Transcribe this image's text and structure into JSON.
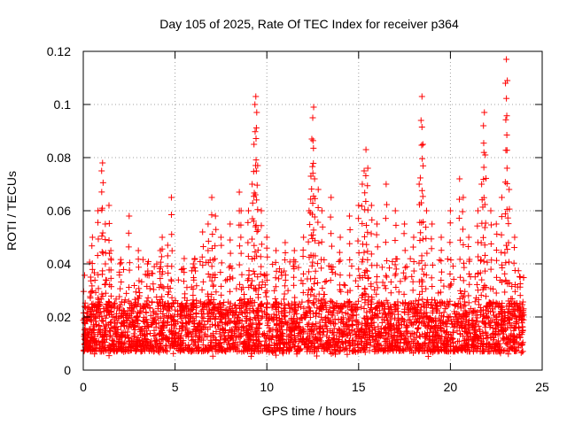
{
  "chart_data": {
    "type": "scatter",
    "title": "Day 105 of 2025, Rate Of TEC Index for receiver p364",
    "xlabel": "GPS time / hours",
    "ylabel": "ROTI / TECUs",
    "xlim": [
      0,
      25
    ],
    "ylim": [
      0,
      0.12
    ],
    "x_ticks": [
      0,
      5,
      10,
      15,
      20,
      25
    ],
    "y_ticks": [
      0,
      0.02,
      0.04,
      0.06,
      0.08,
      0.1,
      0.12
    ],
    "x_tick_labels": [
      "0",
      "5",
      "10",
      "15",
      "20",
      "25"
    ],
    "y_tick_labels": [
      "0",
      "0.02",
      "0.04",
      "0.06",
      "0.08",
      "0.1",
      "0.12"
    ],
    "grid": true,
    "marker": "plus",
    "color": "#ff0000",
    "series": [
      {
        "name": "",
        "points": [
          [
            0.1,
            0.012
          ],
          [
            0.2,
            0.02
          ],
          [
            0.4,
            0.035
          ],
          [
            0.5,
            0.05
          ],
          [
            0.8,
            0.06
          ],
          [
            1.0,
            0.075
          ],
          [
            1.05,
            0.078
          ],
          [
            1.2,
            0.055
          ],
          [
            1.4,
            0.062
          ],
          [
            1.5,
            0.045
          ],
          [
            2.0,
            0.04
          ],
          [
            2.5,
            0.058
          ],
          [
            3.0,
            0.045
          ],
          [
            3.5,
            0.04
          ],
          [
            4.2,
            0.045
          ],
          [
            4.3,
            0.05
          ],
          [
            4.6,
            0.047
          ],
          [
            4.8,
            0.065
          ],
          [
            5.5,
            0.042
          ],
          [
            6.0,
            0.04
          ],
          [
            6.5,
            0.052
          ],
          [
            6.8,
            0.055
          ],
          [
            7.0,
            0.065
          ],
          [
            7.2,
            0.058
          ],
          [
            7.5,
            0.05
          ],
          [
            8.0,
            0.055
          ],
          [
            8.5,
            0.067
          ],
          [
            8.6,
            0.06
          ],
          [
            9.0,
            0.06
          ],
          [
            9.2,
            0.07
          ],
          [
            9.3,
            0.085
          ],
          [
            9.35,
            0.1
          ],
          [
            9.4,
            0.103
          ],
          [
            9.45,
            0.097
          ],
          [
            9.5,
            0.077
          ],
          [
            9.7,
            0.06
          ],
          [
            10.0,
            0.05
          ],
          [
            10.5,
            0.045
          ],
          [
            11.0,
            0.048
          ],
          [
            11.5,
            0.045
          ],
          [
            12.0,
            0.05
          ],
          [
            12.3,
            0.06
          ],
          [
            12.4,
            0.073
          ],
          [
            12.45,
            0.087
          ],
          [
            12.5,
            0.095
          ],
          [
            12.55,
            0.099
          ],
          [
            12.6,
            0.072
          ],
          [
            12.8,
            0.068
          ],
          [
            13.0,
            0.06
          ],
          [
            13.5,
            0.065
          ],
          [
            14.0,
            0.05
          ],
          [
            14.5,
            0.058
          ],
          [
            15.0,
            0.062
          ],
          [
            15.2,
            0.07
          ],
          [
            15.3,
            0.075
          ],
          [
            15.4,
            0.083
          ],
          [
            15.5,
            0.076
          ],
          [
            15.7,
            0.062
          ],
          [
            16.0,
            0.055
          ],
          [
            16.5,
            0.07
          ],
          [
            17.0,
            0.06
          ],
          [
            17.5,
            0.055
          ],
          [
            18.0,
            0.05
          ],
          [
            18.3,
            0.07
          ],
          [
            18.4,
            0.094
          ],
          [
            18.45,
            0.103
          ],
          [
            18.5,
            0.085
          ],
          [
            18.7,
            0.06
          ],
          [
            19.0,
            0.055
          ],
          [
            19.5,
            0.05
          ],
          [
            20.0,
            0.06
          ],
          [
            20.5,
            0.072
          ],
          [
            20.7,
            0.065
          ],
          [
            21.0,
            0.05
          ],
          [
            21.5,
            0.06
          ],
          [
            21.7,
            0.07
          ],
          [
            21.8,
            0.092
          ],
          [
            21.85,
            0.097
          ],
          [
            21.9,
            0.081
          ],
          [
            22.2,
            0.06
          ],
          [
            22.5,
            0.055
          ],
          [
            22.8,
            0.065
          ],
          [
            23.0,
            0.108
          ],
          [
            23.05,
            0.117
          ],
          [
            23.1,
            0.109
          ],
          [
            23.2,
            0.068
          ],
          [
            23.5,
            0.05
          ],
          [
            23.8,
            0.035
          ],
          [
            23.9,
            0.02
          ],
          [
            23.95,
            0.015
          ]
        ]
      }
    ],
    "dense_band": {
      "x_range": [
        0,
        24
      ],
      "typical_min": 0.005,
      "typical_max": 0.03,
      "median": 0.013
    }
  }
}
